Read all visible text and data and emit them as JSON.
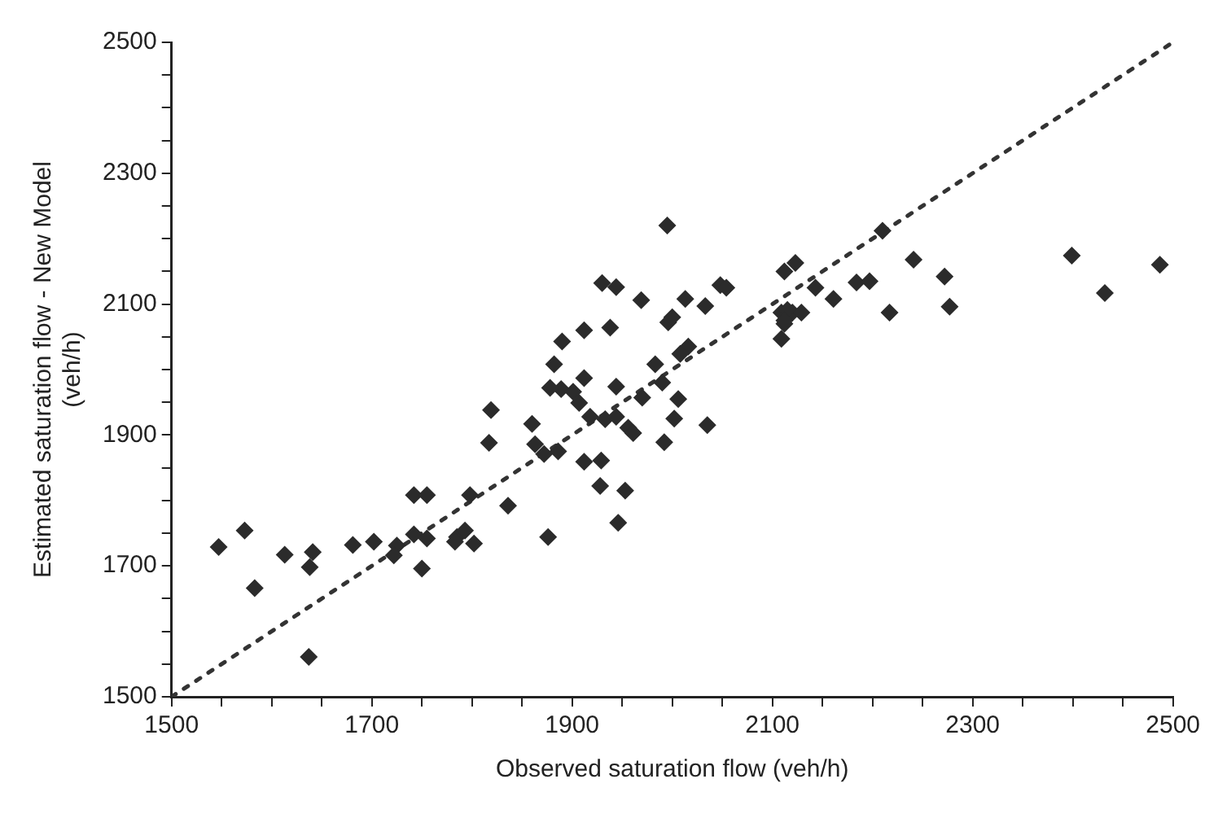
{
  "chart_data": {
    "type": "scatter",
    "xlabel": "Observed saturation flow (veh/h)",
    "ylabel": "Estimated saturation flow - New Model (veh/h)",
    "xlim": [
      1500,
      2500
    ],
    "ylim": [
      1500,
      2500
    ],
    "xticks": [
      1500,
      {
        "value": 1550,
        "label": null
      },
      {
        "value": 1600,
        "label": null
      },
      {
        "value": 1650,
        "label": null
      },
      1700,
      {
        "value": 1750,
        "label": null
      },
      {
        "value": 1800,
        "label": null
      },
      {
        "value": 1850,
        "label": null
      },
      1900,
      {
        "value": 1950,
        "label": null
      },
      {
        "value": 2000,
        "label": null
      },
      {
        "value": 2050,
        "label": null
      },
      2100,
      {
        "value": 2150,
        "label": null
      },
      {
        "value": 2200,
        "label": null
      },
      {
        "value": 2250,
        "label": null
      },
      2300,
      {
        "value": 2350,
        "label": null
      },
      {
        "value": 2400,
        "label": null
      },
      {
        "value": 2450,
        "label": null
      },
      2500
    ],
    "yticks": [
      1500,
      {
        "value": 1550,
        "label": null
      },
      {
        "value": 1600,
        "label": null
      },
      {
        "value": 1650,
        "label": null
      },
      1700,
      {
        "value": 1750,
        "label": null
      },
      {
        "value": 1800,
        "label": null
      },
      {
        "value": 1850,
        "label": null
      },
      1900,
      {
        "value": 1950,
        "label": null
      },
      {
        "value": 2000,
        "label": null
      },
      {
        "value": 2050,
        "label": null
      },
      2100,
      {
        "value": 2150,
        "label": null
      },
      {
        "value": 2200,
        "label": null
      },
      {
        "value": 2250,
        "label": null
      },
      2300,
      {
        "value": 2350,
        "label": null
      },
      {
        "value": 2400,
        "label": null
      },
      {
        "value": 2450,
        "label": null
      },
      2500
    ],
    "grid": false,
    "legend": false,
    "marker": "diamond",
    "series": [
      {
        "color": "#2b2b2b",
        "x": [
          1547,
          1573,
          1583,
          1613,
          1641,
          1638,
          1637,
          1681,
          1702,
          1725,
          1722,
          1742,
          1755,
          1742,
          1755,
          1750,
          1798,
          1785,
          1793,
          1802,
          1783,
          1836,
          1876,
          1819,
          1817,
          1860,
          1863,
          1872,
          1886,
          1912,
          1929,
          1928,
          1930,
          1944,
          1969,
          2013,
          2033,
          2048,
          2054,
          2143,
          2161,
          2109,
          2120,
          2129,
          2112,
          2109,
          1912,
          1938,
          1890,
          1882,
          1996,
          2000,
          2016,
          2008,
          1983,
          1990,
          1944,
          1912,
          1889,
          1901,
          1878,
          1907,
          1918,
          1933,
          1944,
          1956,
          1961,
          1970,
          2006,
          2002,
          2035,
          1992,
          1953,
          1946,
          2123,
          2112,
          2184,
          2197,
          2241,
          2272,
          2277,
          2217,
          2115,
          2112,
          2399,
          2432,
          2487,
          1995,
          2210
        ],
        "values": [
          1729,
          1754,
          1666,
          1717,
          1721,
          1698,
          1561,
          1732,
          1737,
          1731,
          1716,
          1808,
          1808,
          1748,
          1742,
          1696,
          1808,
          1744,
          1754,
          1734,
          1737,
          1792,
          1744,
          1938,
          1888,
          1917,
          1886,
          1871,
          1875,
          1859,
          1861,
          1822,
          2132,
          2126,
          2106,
          2108,
          2097,
          2129,
          2125,
          2125,
          2108,
          2087,
          2087,
          2087,
          2070,
          2047,
          2060,
          2064,
          2043,
          2008,
          2072,
          2080,
          2035,
          2024,
          2008,
          1980,
          1974,
          1987,
          1970,
          1966,
          1972,
          1949,
          1928,
          1924,
          1928,
          1911,
          1903,
          1957,
          1955,
          1925,
          1915,
          1889,
          1815,
          1766,
          2163,
          2150,
          2133,
          2135,
          2168,
          2142,
          2096,
          2087,
          2091,
          2075,
          2174,
          2117,
          2160,
          2220,
          2212
        ]
      },
      {
        "type": "line",
        "color": "#333333",
        "line_style": "dotted",
        "marker": "none",
        "x": [
          1500,
          2500
        ],
        "values": [
          1500,
          2500
        ]
      }
    ]
  }
}
